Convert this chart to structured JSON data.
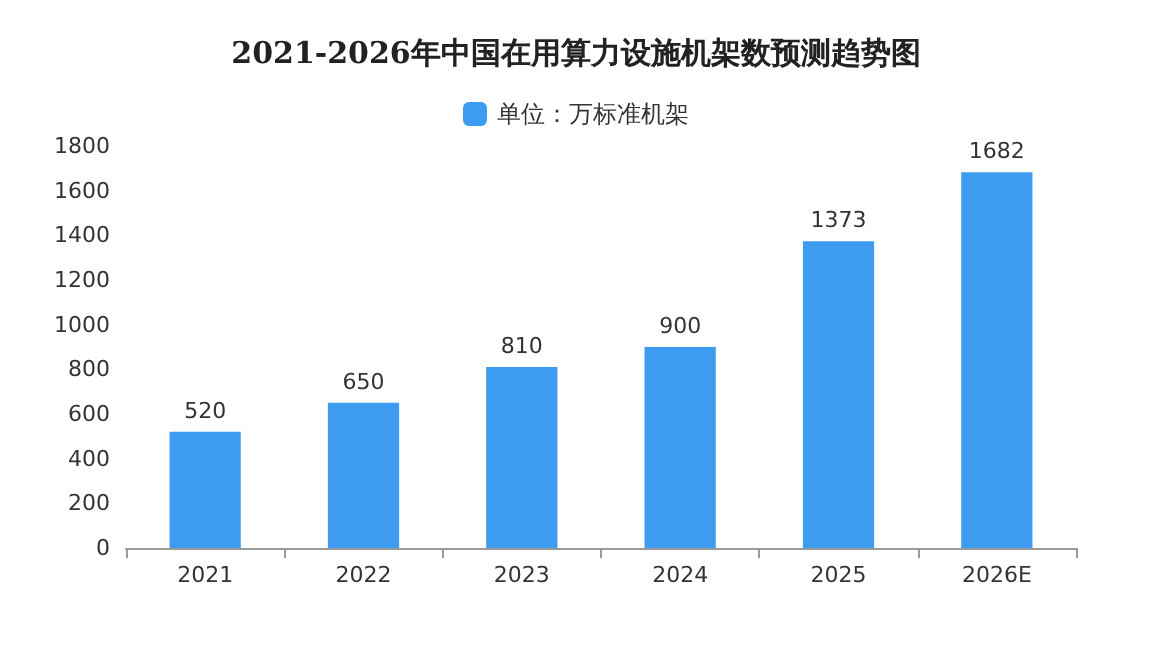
{
  "chart_data": {
    "type": "bar",
    "title": "2021-2026年中国在用算力设施机架数预测趋势图",
    "categories": [
      "2021",
      "2022",
      "2023",
      "2024",
      "2025",
      "2026E"
    ],
    "series": [
      {
        "name": "单位：万标准机架",
        "color": "#3d9cf0",
        "values": [
          520,
          650,
          810,
          900,
          1373,
          1682
        ]
      }
    ],
    "ylim": [
      0,
      1800
    ],
    "yticks": [
      0,
      200,
      400,
      600,
      800,
      1000,
      1200,
      1400,
      1600,
      1800
    ],
    "data_labels": true,
    "legend": "top",
    "grid": false
  }
}
